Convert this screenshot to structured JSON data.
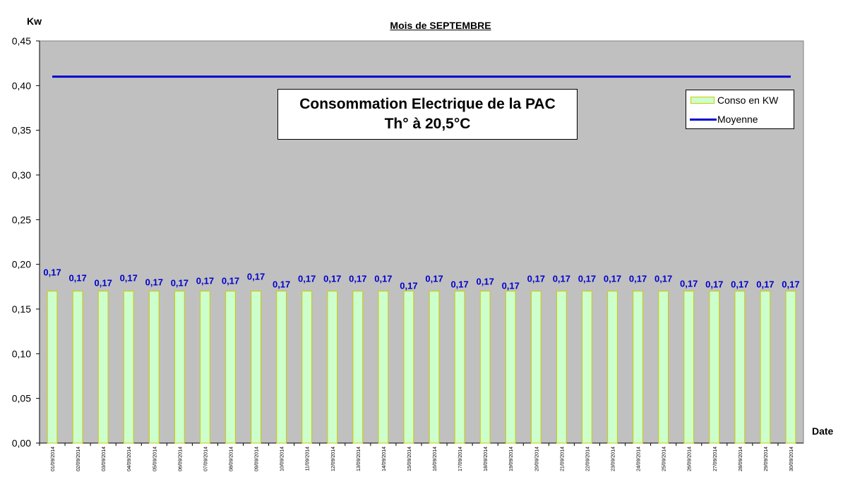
{
  "chart_data": {
    "type": "bar",
    "title": "Mois  de  SEPTEMBRE",
    "ylabel": "Kw",
    "xlabel": "Date",
    "ylim": [
      0,
      0.45
    ],
    "yticks": [
      "0,00",
      "0,05",
      "0,10",
      "0,15",
      "0,20",
      "0,25",
      "0,30",
      "0,35",
      "0,40",
      "0,45"
    ],
    "annotation": [
      "Consommation Electrique de la PAC",
      "Th° à  20,5°C"
    ],
    "legend_position": "top-right",
    "grid": false,
    "categories": [
      "01/09/2014",
      "02/09/2014",
      "03/09/2014",
      "04/09/2014",
      "05/09/2014",
      "06/09/2014",
      "07/09/2014",
      "08/09/2014",
      "09/09/2014",
      "10/09/2014",
      "11/09/2014",
      "12/09/2014",
      "13/09/2014",
      "14/09/2014",
      "15/09/2014",
      "16/09/2014",
      "17/09/2014",
      "18/09/2014",
      "19/09/2014",
      "20/09/2014",
      "21/09/2014",
      "22/09/2014",
      "23/09/2014",
      "24/09/2014",
      "25/09/2014",
      "26/09/2014",
      "27/09/2014",
      "28/09/2014",
      "29/09/2014",
      "30/09/2014"
    ],
    "series": [
      {
        "name": "Conso en KW",
        "type": "bar",
        "color": "#ccffcc",
        "border_color": "#cccc00",
        "values": [
          0.17,
          0.17,
          0.17,
          0.17,
          0.17,
          0.17,
          0.17,
          0.17,
          0.17,
          0.17,
          0.17,
          0.17,
          0.17,
          0.17,
          0.17,
          0.17,
          0.17,
          0.17,
          0.17,
          0.17,
          0.17,
          0.17,
          0.17,
          0.17,
          0.17,
          0.17,
          0.17,
          0.17,
          0.17,
          0.17
        ],
        "labels": [
          "0,17",
          "0,17",
          "0,17",
          "0,17",
          "0,17",
          "0,17",
          "0,17",
          "0,17",
          "0,17",
          "0,17",
          "0,17",
          "0,17",
          "0,17",
          "0,17",
          "0,17",
          "0,17",
          "0,17",
          "0,17",
          "0,17",
          "0,17",
          "0,17",
          "0,17",
          "0,17",
          "0,17",
          "0,17",
          "0,17",
          "0,17",
          "0,17",
          "0,17",
          "0,17"
        ]
      },
      {
        "name": "Moyenne",
        "type": "line",
        "color": "#0000cc",
        "value": 0.41
      }
    ],
    "plot_background": "#c0c0c0",
    "label_color": "#0000cc"
  }
}
